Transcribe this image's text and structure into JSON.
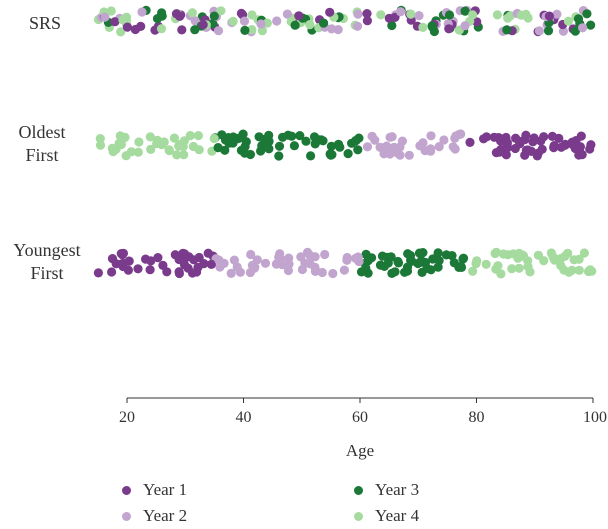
{
  "chart_data": {
    "type": "scatter",
    "xlabel": "Age",
    "xlim": [
      15,
      100
    ],
    "xticks": [
      20,
      40,
      60,
      80,
      100
    ],
    "rows": [
      {
        "label": [
          "SRS"
        ],
        "segments": [
          {
            "from": 15,
            "to": 100,
            "year": "mixed"
          }
        ]
      },
      {
        "label": [
          "Oldest",
          "First"
        ],
        "segments": [
          {
            "from": 15,
            "to": 35,
            "year": "Year 4"
          },
          {
            "from": 35,
            "to": 60,
            "year": "Year 3"
          },
          {
            "from": 60,
            "to": 78,
            "year": "Year 2"
          },
          {
            "from": 78,
            "to": 100,
            "year": "Year 1"
          }
        ]
      },
      {
        "label": [
          "Youngest",
          "First"
        ],
        "segments": [
          {
            "from": 15,
            "to": 35,
            "year": "Year 1"
          },
          {
            "from": 35,
            "to": 60,
            "year": "Year 2"
          },
          {
            "from": 60,
            "to": 78,
            "year": "Year 3"
          },
          {
            "from": 78,
            "to": 100,
            "year": "Year 4"
          }
        ]
      }
    ],
    "legend": [
      {
        "name": "Year 1",
        "color": "#7b3b8c"
      },
      {
        "name": "Year 2",
        "color": "#c2a5cf"
      },
      {
        "name": "Year 3",
        "color": "#1b7837"
      },
      {
        "name": "Year 4",
        "color": "#a6dba0"
      }
    ],
    "legend_placement": "bottom",
    "grid": false
  }
}
